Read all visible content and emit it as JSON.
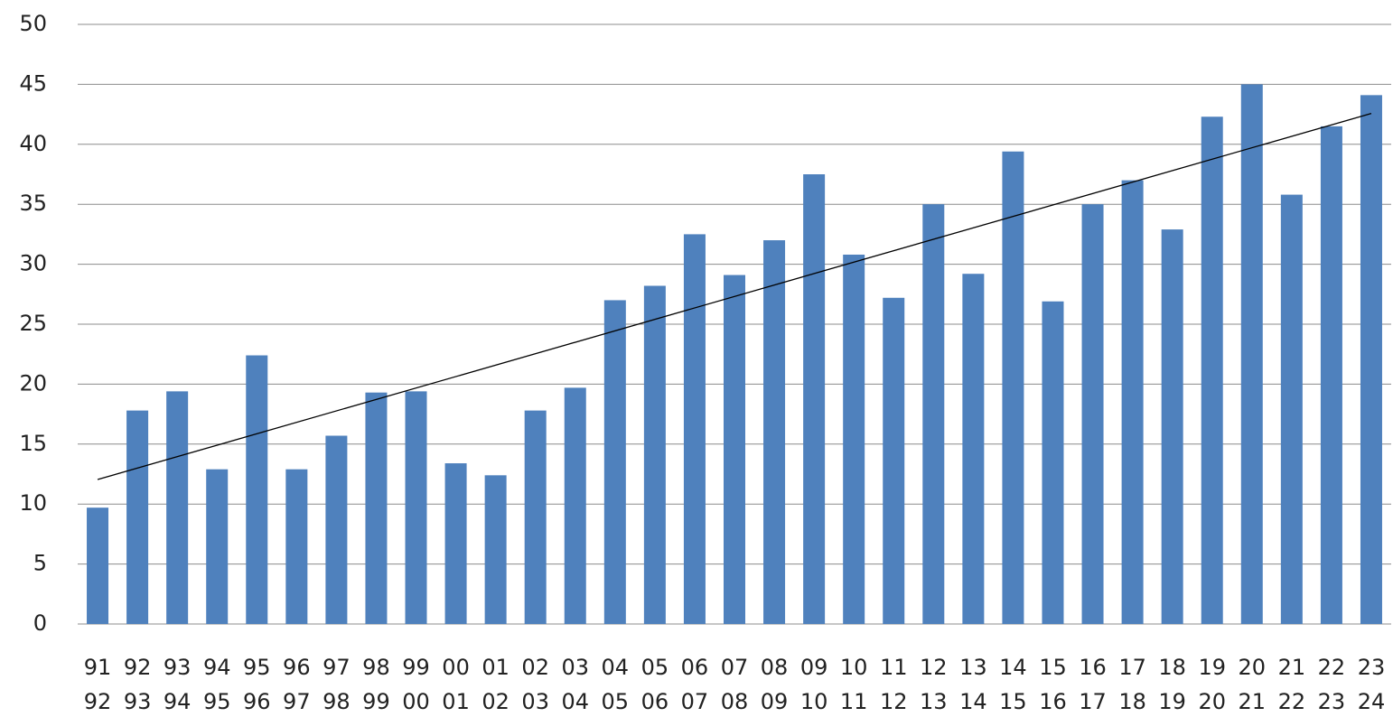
{
  "chart_data": {
    "type": "bar",
    "categories": [
      [
        "91",
        "92"
      ],
      [
        "92",
        "93"
      ],
      [
        "93",
        "94"
      ],
      [
        "94",
        "95"
      ],
      [
        "95",
        "96"
      ],
      [
        "96",
        "97"
      ],
      [
        "97",
        "98"
      ],
      [
        "98",
        "99"
      ],
      [
        "99",
        "00"
      ],
      [
        "00",
        "01"
      ],
      [
        "01",
        "02"
      ],
      [
        "02",
        "03"
      ],
      [
        "03",
        "04"
      ],
      [
        "04",
        "05"
      ],
      [
        "05",
        "06"
      ],
      [
        "06",
        "07"
      ],
      [
        "07",
        "08"
      ],
      [
        "08",
        "09"
      ],
      [
        "09",
        "10"
      ],
      [
        "10",
        "11"
      ],
      [
        "11",
        "12"
      ],
      [
        "12",
        "13"
      ],
      [
        "13",
        "14"
      ],
      [
        "14",
        "15"
      ],
      [
        "15",
        "16"
      ],
      [
        "16",
        "17"
      ],
      [
        "17",
        "18"
      ],
      [
        "18",
        "19"
      ],
      [
        "19",
        "20"
      ],
      [
        "20",
        "21"
      ],
      [
        "21",
        "22"
      ],
      [
        "22",
        "23"
      ],
      [
        "23",
        "24"
      ]
    ],
    "values": [
      9.7,
      17.8,
      19.4,
      12.9,
      22.4,
      12.9,
      15.7,
      19.3,
      19.4,
      13.4,
      12.4,
      17.8,
      19.7,
      27.0,
      28.2,
      32.5,
      29.1,
      32.0,
      37.5,
      30.8,
      27.2,
      35.0,
      29.2,
      39.4,
      26.9,
      35.0,
      37.0,
      32.9,
      42.3,
      45.0,
      35.8,
      41.5,
      44.1
    ],
    "color": "#4f81bd",
    "ylim": [
      0,
      50
    ],
    "yticks": [
      0,
      5,
      10,
      15,
      20,
      25,
      30,
      35,
      40,
      45,
      50
    ],
    "grid": true,
    "trendline": "linear",
    "trendline_color": "#000000"
  }
}
